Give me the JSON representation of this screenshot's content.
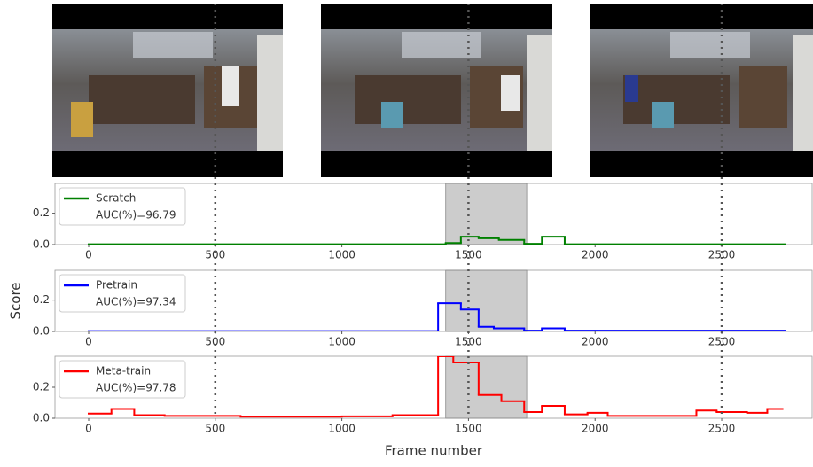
{
  "chart_data": [
    {
      "type": "step",
      "xlim": [
        -133,
        2857
      ],
      "ylim": [
        0,
        0.39
      ],
      "xticks": [
        0,
        500,
        1000,
        1500,
        2000,
        2500
      ],
      "yticks": [
        {
          "value": 0,
          "label": "0.0"
        },
        0.2
      ],
      "span": [
        1410,
        1730
      ],
      "vlines": [
        500,
        1500,
        2500
      ],
      "series": [
        {
          "name": "Scratch",
          "legend_text": "AUC(%)=96.79",
          "color": "#008000",
          "bins": [
            0,
            1410,
            1470,
            1540,
            1620,
            1720,
            1790,
            1880,
            2750
          ],
          "values": [
            0.002,
            0.01,
            0.05,
            0.04,
            0.03,
            0.005,
            0.05,
            0.002
          ]
        }
      ]
    },
    {
      "type": "step",
      "ylabel": "Score",
      "xlim": [
        -133,
        2857
      ],
      "ylim": [
        0,
        0.39
      ],
      "xticks": [
        0,
        500,
        1000,
        1500,
        2000,
        2500
      ],
      "yticks": [
        {
          "value": 0,
          "label": "0.0"
        },
        0.2
      ],
      "span": [
        1410,
        1730
      ],
      "vlines": [
        500,
        1500,
        2500
      ],
      "series": [
        {
          "name": "Pretrain",
          "legend_text": "AUC(%)=97.34",
          "color": "#0000ff",
          "bins": [
            0,
            1380,
            1470,
            1540,
            1600,
            1720,
            1790,
            1880,
            2750
          ],
          "values": [
            0.002,
            0.18,
            0.14,
            0.03,
            0.02,
            0.005,
            0.02,
            0.005
          ]
        }
      ]
    },
    {
      "type": "step",
      "xlabel": "Frame number",
      "xlim": [
        -133,
        2857
      ],
      "ylim": [
        0,
        0.4
      ],
      "xticks": [
        0,
        500,
        1000,
        1500,
        2000,
        2500
      ],
      "yticks": [
        {
          "value": 0,
          "label": "0.0"
        },
        0.2
      ],
      "span": [
        1410,
        1730
      ],
      "vlines": [
        500,
        1500,
        2500
      ],
      "series": [
        {
          "name": "Meta-train",
          "legend_text": "AUC(%)=97.78",
          "color": "#ff0000",
          "bins": [
            0,
            90,
            180,
            300,
            600,
            1000,
            1200,
            1380,
            1440,
            1540,
            1630,
            1720,
            1790,
            1880,
            1970,
            2050,
            2400,
            2480,
            2600,
            2680,
            2740
          ],
          "values": [
            0.03,
            0.06,
            0.02,
            0.015,
            0.01,
            0.012,
            0.02,
            0.4,
            0.36,
            0.15,
            0.11,
            0.04,
            0.08,
            0.025,
            0.035,
            0.015,
            0.05,
            0.04,
            0.035,
            0.06
          ]
        }
      ]
    }
  ]
}
